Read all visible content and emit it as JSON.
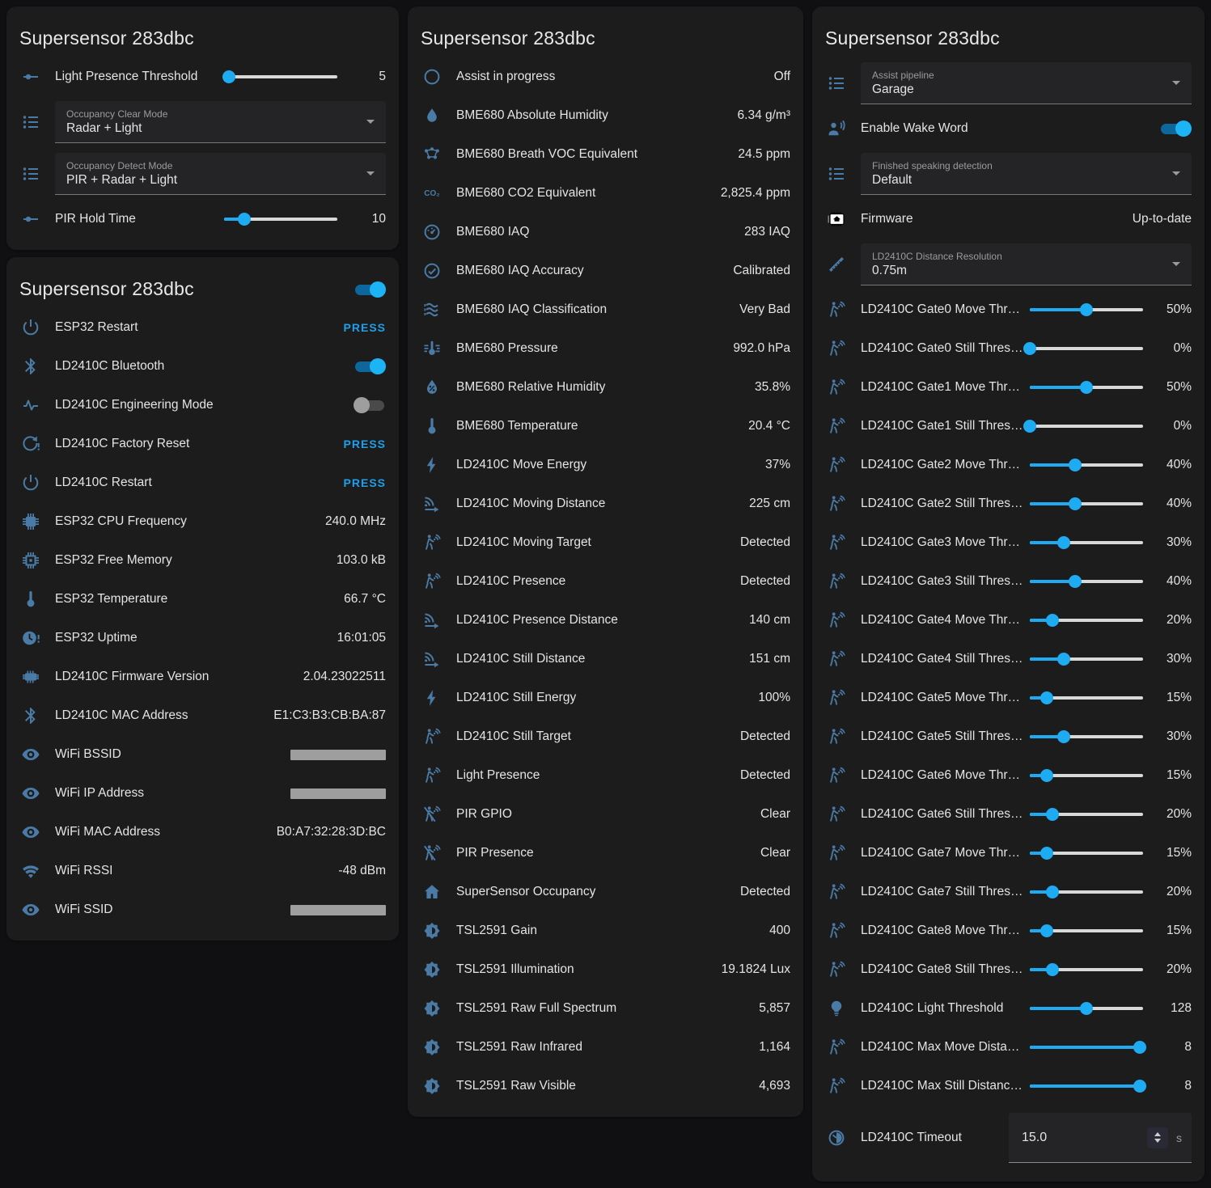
{
  "colors": {
    "accent": "#1fabf2",
    "icon_blue": "#4a7ba6",
    "card_bg": "#1c1c1d",
    "page_bg": "#101012",
    "press_blue": "#1f9fea"
  },
  "cards": [
    {
      "title": "Supersensor 283dbc",
      "column": 0,
      "header_toggle": null,
      "rows": [
        {
          "type": "slider",
          "icon": "tune-icon",
          "label": "Light Presence Threshold",
          "value": "5",
          "pct": 4
        },
        {
          "type": "select",
          "icon": "list-icon",
          "label": "Occupancy Clear Mode",
          "value": "Radar + Light"
        },
        {
          "type": "select",
          "icon": "list-icon",
          "label": "Occupancy Detect Mode",
          "value": "PIR + Radar + Light"
        },
        {
          "type": "slider",
          "icon": "tune-icon",
          "label": "PIR Hold Time",
          "value": "10",
          "pct": 18
        }
      ]
    },
    {
      "title": "Supersensor 283dbc",
      "column": 0,
      "header_toggle": "on",
      "rows": [
        {
          "type": "press",
          "icon": "power-icon",
          "label": "ESP32 Restart",
          "value": "PRESS"
        },
        {
          "type": "toggle",
          "icon": "bluetooth-icon",
          "label": "LD2410C Bluetooth",
          "state": "on"
        },
        {
          "type": "toggle",
          "icon": "pulse-icon",
          "label": "LD2410C Engineering Mode",
          "state": "off"
        },
        {
          "type": "press",
          "icon": "restore-alert-icon",
          "label": "LD2410C Factory Reset",
          "value": "PRESS"
        },
        {
          "type": "press",
          "icon": "power-icon",
          "label": "LD2410C Restart",
          "value": "PRESS"
        },
        {
          "type": "sensor",
          "icon": "cpu-chip-icon",
          "label": "ESP32 CPU Frequency",
          "value": "240.0 MHz"
        },
        {
          "type": "sensor",
          "icon": "memory-chip-icon",
          "label": "ESP32 Free Memory",
          "value": "103.0 kB"
        },
        {
          "type": "sensor",
          "icon": "thermometer-icon",
          "label": "ESP32 Temperature",
          "value": "66.7 °C"
        },
        {
          "type": "sensor",
          "icon": "clock-alert-icon",
          "label": "ESP32 Uptime",
          "value": "16:01:05"
        },
        {
          "type": "sensor",
          "icon": "chip-icon",
          "label": "LD2410C Firmware Version",
          "value": "2.04.23022511"
        },
        {
          "type": "sensor",
          "icon": "bluetooth-icon",
          "label": "LD2410C MAC Address",
          "value": "E1:C3:B3:CB:BA:87"
        },
        {
          "type": "redacted",
          "icon": "eye-icon",
          "label": "WiFi BSSID"
        },
        {
          "type": "redacted",
          "icon": "eye-icon",
          "label": "WiFi IP Address"
        },
        {
          "type": "sensor",
          "icon": "eye-icon",
          "label": "WiFi MAC Address",
          "value": "B0:A7:32:28:3D:BC"
        },
        {
          "type": "sensor",
          "icon": "wifi-icon",
          "label": "WiFi RSSI",
          "value": "-48 dBm"
        },
        {
          "type": "redacted",
          "icon": "eye-icon",
          "label": "WiFi SSID"
        }
      ]
    },
    {
      "title": "Supersensor 283dbc",
      "column": 1,
      "header_toggle": null,
      "rows": [
        {
          "type": "sensor",
          "icon": "circle-outline-icon",
          "label": "Assist in progress",
          "value": "Off"
        },
        {
          "type": "sensor",
          "icon": "water-drop-icon",
          "label": "BME680 Absolute Humidity",
          "value": "6.34 g/m³"
        },
        {
          "type": "sensor",
          "icon": "molecule-icon",
          "label": "BME680 Breath VOC Equivalent",
          "value": "24.5 ppm"
        },
        {
          "type": "sensor",
          "icon": "co2-icon",
          "label": "BME680 CO2 Equivalent",
          "value": "2,825.4 ppm"
        },
        {
          "type": "sensor",
          "icon": "gauge-icon",
          "label": "BME680 IAQ",
          "value": "283 IAQ"
        },
        {
          "type": "sensor",
          "icon": "check-circle-icon",
          "label": "BME680 IAQ Accuracy",
          "value": "Calibrated"
        },
        {
          "type": "sensor",
          "icon": "air-filter-icon",
          "label": "BME680 IAQ Classification",
          "value": "Very Bad"
        },
        {
          "type": "sensor",
          "icon": "pressure-icon",
          "label": "BME680 Pressure",
          "value": "992.0 hPa"
        },
        {
          "type": "sensor",
          "icon": "water-percent-icon",
          "label": "BME680 Relative Humidity",
          "value": "35.8%"
        },
        {
          "type": "sensor",
          "icon": "thermometer-icon",
          "label": "BME680 Temperature",
          "value": "20.4 °C"
        },
        {
          "type": "sensor",
          "icon": "flash-icon",
          "label": "LD2410C Move Energy",
          "value": "37%"
        },
        {
          "type": "sensor",
          "icon": "signal-distance-icon",
          "label": "LD2410C Moving Distance",
          "value": "225 cm"
        },
        {
          "type": "sensor",
          "icon": "motion-sensor-icon",
          "label": "LD2410C Moving Target",
          "value": "Detected"
        },
        {
          "type": "sensor",
          "icon": "motion-sensor-icon",
          "label": "LD2410C Presence",
          "value": "Detected"
        },
        {
          "type": "sensor",
          "icon": "signal-distance-icon",
          "label": "LD2410C Presence Distance",
          "value": "140 cm"
        },
        {
          "type": "sensor",
          "icon": "signal-distance-icon",
          "label": "LD2410C Still Distance",
          "value": "151 cm"
        },
        {
          "type": "sensor",
          "icon": "flash-icon",
          "label": "LD2410C Still Energy",
          "value": "100%"
        },
        {
          "type": "sensor",
          "icon": "motion-sensor-icon",
          "label": "LD2410C Still Target",
          "value": "Detected"
        },
        {
          "type": "sensor",
          "icon": "motion-sensor-icon",
          "label": "Light Presence",
          "value": "Detected"
        },
        {
          "type": "sensor",
          "icon": "motion-sensor-off-icon",
          "label": "PIR GPIO",
          "value": "Clear"
        },
        {
          "type": "sensor",
          "icon": "motion-sensor-off-icon",
          "label": "PIR Presence",
          "value": "Clear"
        },
        {
          "type": "sensor",
          "icon": "home-icon",
          "label": "SuperSensor Occupancy",
          "value": "Detected"
        },
        {
          "type": "sensor",
          "icon": "brightness-icon",
          "label": "TSL2591 Gain",
          "value": "400"
        },
        {
          "type": "sensor",
          "icon": "brightness-icon",
          "label": "TSL2591 Illumination",
          "value": "19.1824 Lux"
        },
        {
          "type": "sensor",
          "icon": "brightness-icon",
          "label": "TSL2591 Raw Full Spectrum",
          "value": "5,857"
        },
        {
          "type": "sensor",
          "icon": "brightness-icon",
          "label": "TSL2591 Raw Infrared",
          "value": "1,164"
        },
        {
          "type": "sensor",
          "icon": "brightness-icon",
          "label": "TSL2591 Raw Visible",
          "value": "4,693"
        }
      ]
    },
    {
      "title": "Supersensor 283dbc",
      "column": 2,
      "header_toggle": null,
      "rows": [
        {
          "type": "select",
          "icon": "list-icon",
          "label": "Assist pipeline",
          "value": "Garage"
        },
        {
          "type": "toggle",
          "icon": "account-voice-icon",
          "label": "Enable Wake Word",
          "state": "on"
        },
        {
          "type": "select",
          "icon": "list-icon",
          "label": "Finished speaking detection",
          "value": "Default"
        },
        {
          "type": "sensor",
          "icon": "firmware-chip-icon",
          "label": "Firmware",
          "value": "Up-to-date"
        },
        {
          "type": "select",
          "icon": "ruler-icon",
          "label": "LD2410C Distance Resolution",
          "value": "0.75m"
        },
        {
          "type": "slider",
          "icon": "motion-sensor-icon",
          "label": "LD2410C Gate0 Move Thr…",
          "value": "50%",
          "pct": 50
        },
        {
          "type": "slider",
          "icon": "motion-sensor-icon",
          "label": "LD2410C Gate0 Still Thres…",
          "value": "0%",
          "pct": 0
        },
        {
          "type": "slider",
          "icon": "motion-sensor-icon",
          "label": "LD2410C Gate1 Move Thr…",
          "value": "50%",
          "pct": 50
        },
        {
          "type": "slider",
          "icon": "motion-sensor-icon",
          "label": "LD2410C Gate1 Still Thres…",
          "value": "0%",
          "pct": 0
        },
        {
          "type": "slider",
          "icon": "motion-sensor-icon",
          "label": "LD2410C Gate2 Move Thr…",
          "value": "40%",
          "pct": 40
        },
        {
          "type": "slider",
          "icon": "motion-sensor-icon",
          "label": "LD2410C Gate2 Still Thres…",
          "value": "40%",
          "pct": 40
        },
        {
          "type": "slider",
          "icon": "motion-sensor-icon",
          "label": "LD2410C Gate3 Move Thr…",
          "value": "30%",
          "pct": 30
        },
        {
          "type": "slider",
          "icon": "motion-sensor-icon",
          "label": "LD2410C Gate3 Still Thres…",
          "value": "40%",
          "pct": 40
        },
        {
          "type": "slider",
          "icon": "motion-sensor-icon",
          "label": "LD2410C Gate4 Move Thr…",
          "value": "20%",
          "pct": 20
        },
        {
          "type": "slider",
          "icon": "motion-sensor-icon",
          "label": "LD2410C Gate4 Still Thres…",
          "value": "30%",
          "pct": 30
        },
        {
          "type": "slider",
          "icon": "motion-sensor-icon",
          "label": "LD2410C Gate5 Move Thr…",
          "value": "15%",
          "pct": 15
        },
        {
          "type": "slider",
          "icon": "motion-sensor-icon",
          "label": "LD2410C Gate5 Still Thres…",
          "value": "30%",
          "pct": 30
        },
        {
          "type": "slider",
          "icon": "motion-sensor-icon",
          "label": "LD2410C Gate6 Move Thr…",
          "value": "15%",
          "pct": 15
        },
        {
          "type": "slider",
          "icon": "motion-sensor-icon",
          "label": "LD2410C Gate6 Still Thres…",
          "value": "20%",
          "pct": 20
        },
        {
          "type": "slider",
          "icon": "motion-sensor-icon",
          "label": "LD2410C Gate7 Move Thr…",
          "value": "15%",
          "pct": 15
        },
        {
          "type": "slider",
          "icon": "motion-sensor-icon",
          "label": "LD2410C Gate7 Still Thres…",
          "value": "20%",
          "pct": 20
        },
        {
          "type": "slider",
          "icon": "motion-sensor-icon",
          "label": "LD2410C Gate8 Move Thr…",
          "value": "15%",
          "pct": 15
        },
        {
          "type": "slider",
          "icon": "motion-sensor-icon",
          "label": "LD2410C Gate8 Still Thres…",
          "value": "20%",
          "pct": 20
        },
        {
          "type": "slider",
          "icon": "lightbulb-icon",
          "label": "LD2410C Light Threshold",
          "value": "128",
          "pct": 50
        },
        {
          "type": "slider",
          "icon": "motion-sensor-icon",
          "label": "LD2410C Max Move Dista…",
          "value": "8",
          "pct": 97
        },
        {
          "type": "slider",
          "icon": "motion-sensor-icon",
          "label": "LD2410C Max Still Distanc…",
          "value": "8",
          "pct": 97
        },
        {
          "type": "number",
          "icon": "timer-icon",
          "label": "LD2410C Timeout",
          "value": "15.0",
          "unit": "s"
        }
      ]
    }
  ]
}
